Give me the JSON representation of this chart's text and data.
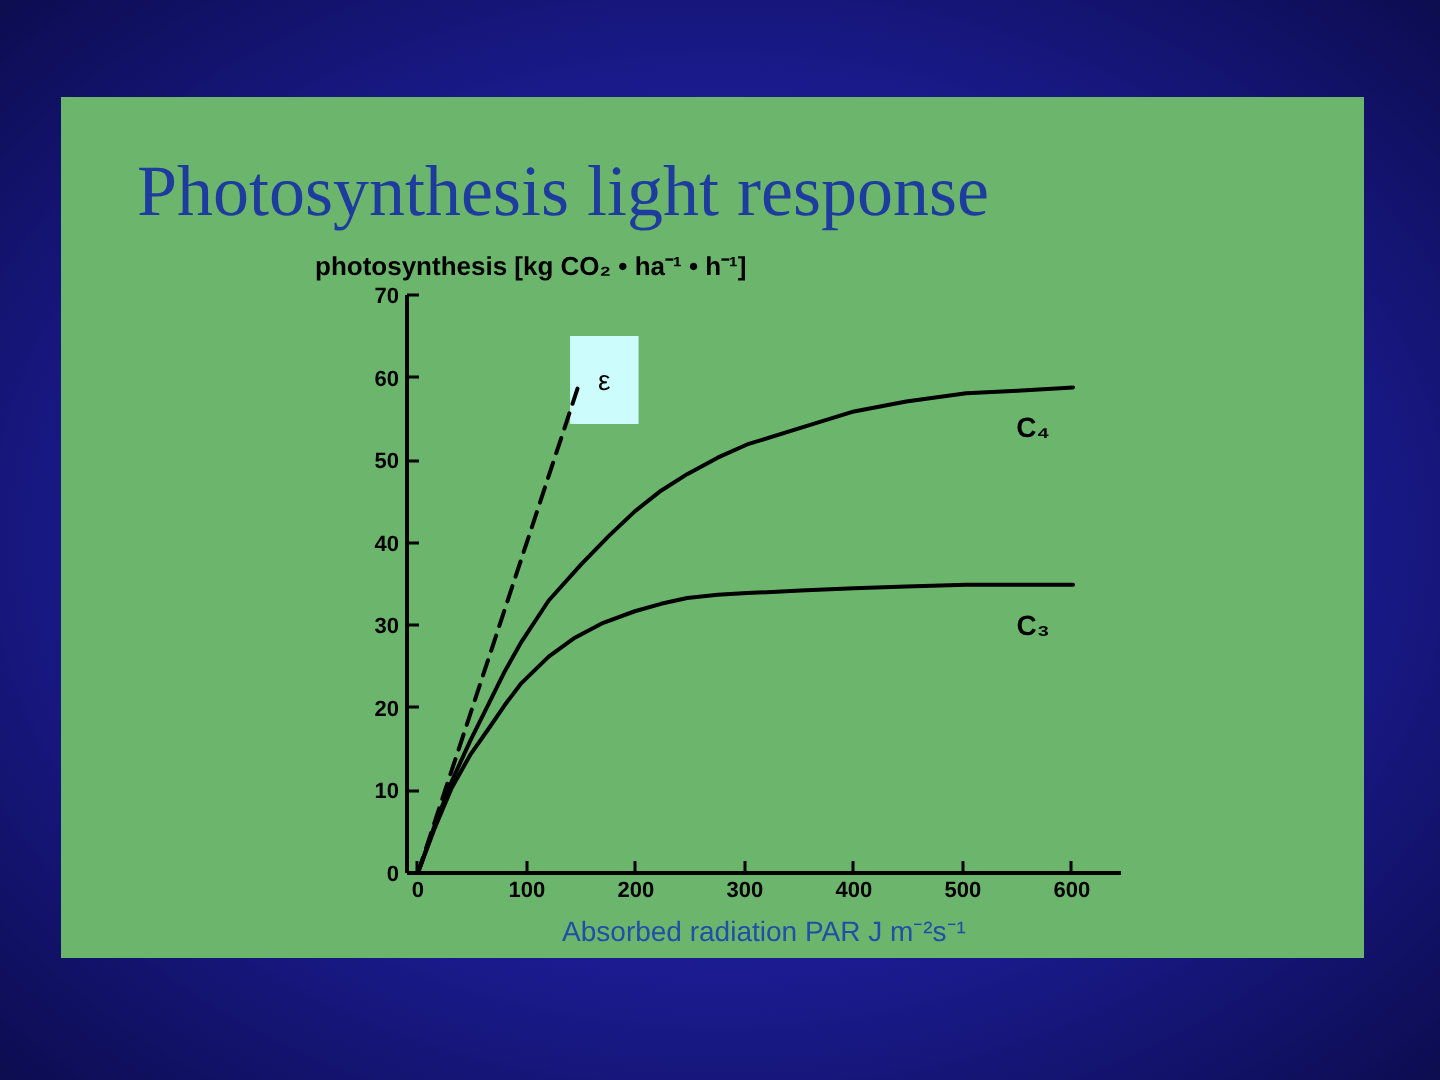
{
  "chart_data": {
    "type": "line",
    "title": "Photosynthesis light response",
    "ylabel": "photosynthesis [kg CO₂ • ha⁻¹ • h⁻¹]",
    "xlabel": "Absorbed radiation PAR J m⁻²s⁻¹",
    "xlim": [
      -10,
      645
    ],
    "ylim": [
      0,
      70
    ],
    "xticks": [
      0,
      100,
      200,
      300,
      400,
      500,
      600
    ],
    "yticks": [
      0,
      10,
      20,
      30,
      40,
      50,
      60,
      70
    ],
    "line_style": "solid",
    "series": [
      {
        "name": "ε",
        "color": "#000000",
        "line_style": "dashed",
        "x": [
          0,
          149
        ],
        "values": [
          0,
          59.7
        ]
      },
      {
        "name": "C₄",
        "color": "#000000",
        "x": [
          0,
          15,
          31,
          48,
          65,
          80,
          95,
          120,
          150,
          175,
          199,
          223,
          247,
          275,
          302,
          351,
          400,
          448,
          503,
          550,
          601
        ],
        "values": [
          0,
          5.6,
          11.1,
          16,
          20.5,
          24.5,
          28,
          33,
          37.4,
          40.8,
          43.8,
          46.3,
          48.3,
          50.3,
          51.9,
          53.9,
          55.9,
          57.1,
          58.1,
          58.4,
          58.8
        ]
      },
      {
        "name": "C₃",
        "color": "#000000",
        "x": [
          0,
          15,
          31,
          48,
          65,
          80,
          95,
          120,
          144,
          170,
          199,
          223,
          247,
          275,
          302,
          351,
          400,
          448,
          503,
          550,
          601
        ],
        "values": [
          0,
          5.3,
          10.3,
          14.3,
          17.5,
          20.4,
          23,
          26.2,
          28.5,
          30.3,
          31.7,
          32.6,
          33.3,
          33.7,
          33.9,
          34.2,
          34.5,
          34.7,
          34.9,
          34.9,
          34.9
        ]
      }
    ]
  }
}
